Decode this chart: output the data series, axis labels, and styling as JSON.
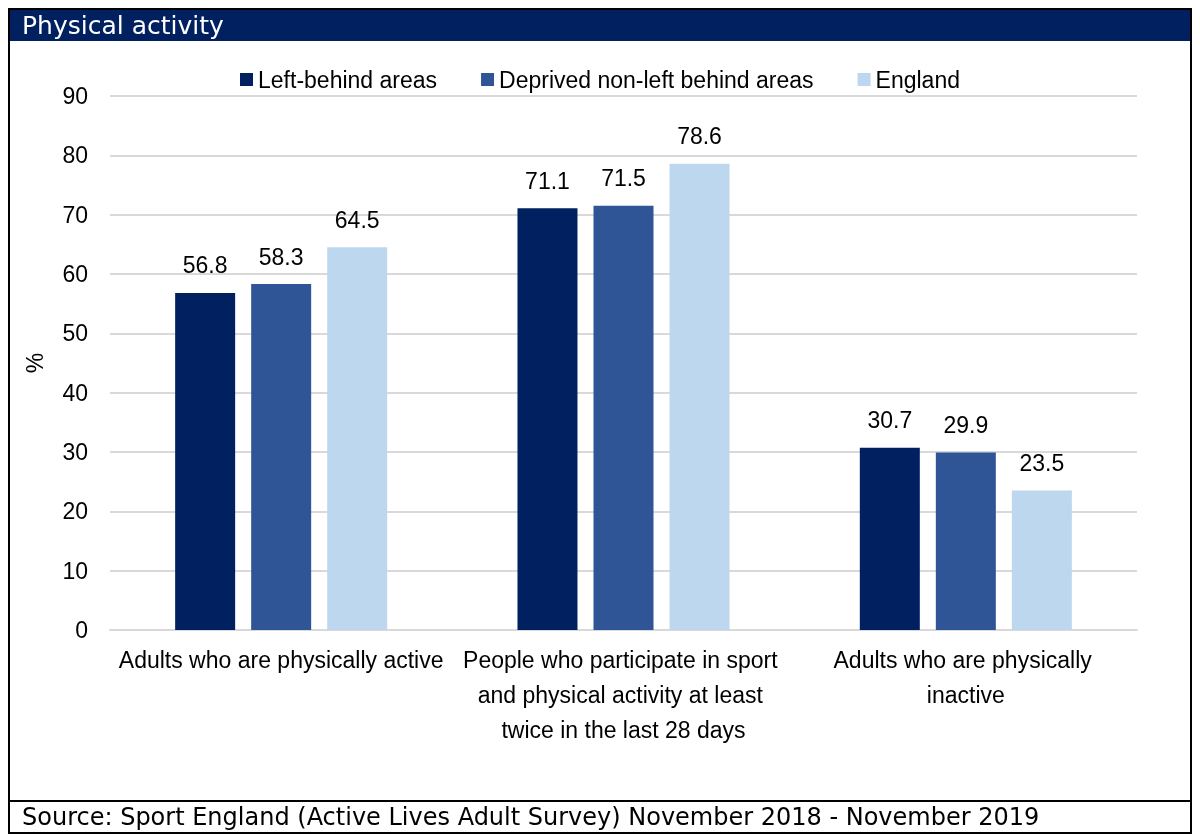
{
  "chart_data": {
    "type": "bar",
    "title": "Physical activity",
    "ylabel": "%",
    "categories": [
      "Adults who are physically active",
      "People who participate in sport and physical activity at least twice in the last 28 days",
      "Adults who are physically inactive"
    ],
    "series": [
      {
        "name": "Left-behind areas",
        "color": "#002060",
        "values": [
          56.8,
          71.1,
          30.7
        ]
      },
      {
        "name": "Deprived non-left behind areas",
        "color": "#2f5597",
        "values": [
          58.3,
          71.5,
          29.9
        ]
      },
      {
        "name": "England",
        "color": "#bdd7ee",
        "values": [
          64.5,
          78.6,
          23.5
        ]
      }
    ],
    "ylim": [
      0,
      90
    ],
    "yticks": [
      0,
      10,
      20,
      30,
      40,
      50,
      60,
      70,
      80,
      90
    ],
    "grid": "y",
    "legend": "top",
    "data_labels": true,
    "annotations": [
      "Source: Sport England (Active Lives Adult Survey) November 2018 - November 2019"
    ]
  }
}
